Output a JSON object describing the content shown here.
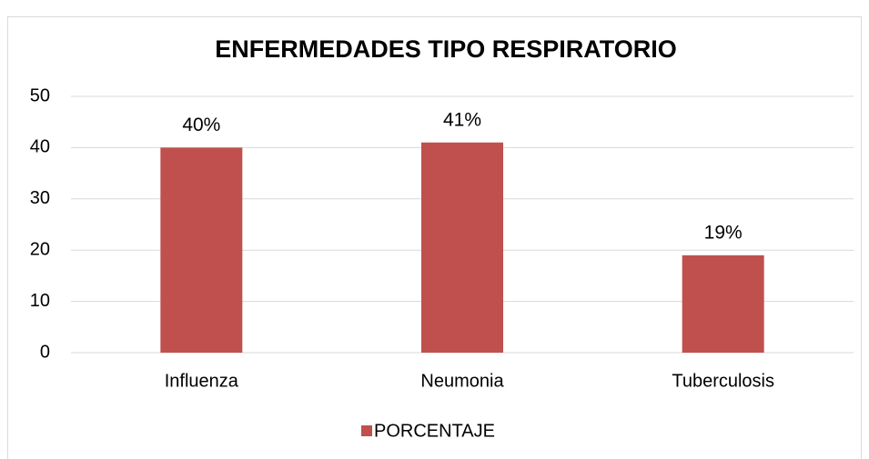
{
  "chart_data": {
    "type": "bar",
    "title": "ENFERMEDADES TIPO RESPIRATORIO",
    "categories": [
      "Influenza",
      "Neumonia",
      "Tuberculosis"
    ],
    "series": [
      {
        "name": "PORCENTAJE",
        "color": "#c0504d",
        "values": [
          40,
          41,
          19
        ],
        "value_labels": [
          "40%",
          "41%",
          "19%"
        ]
      }
    ],
    "ylim": [
      0,
      50
    ],
    "yticks": [
      0,
      10,
      20,
      30,
      40,
      50
    ],
    "grid": true,
    "legend": "bottom"
  }
}
